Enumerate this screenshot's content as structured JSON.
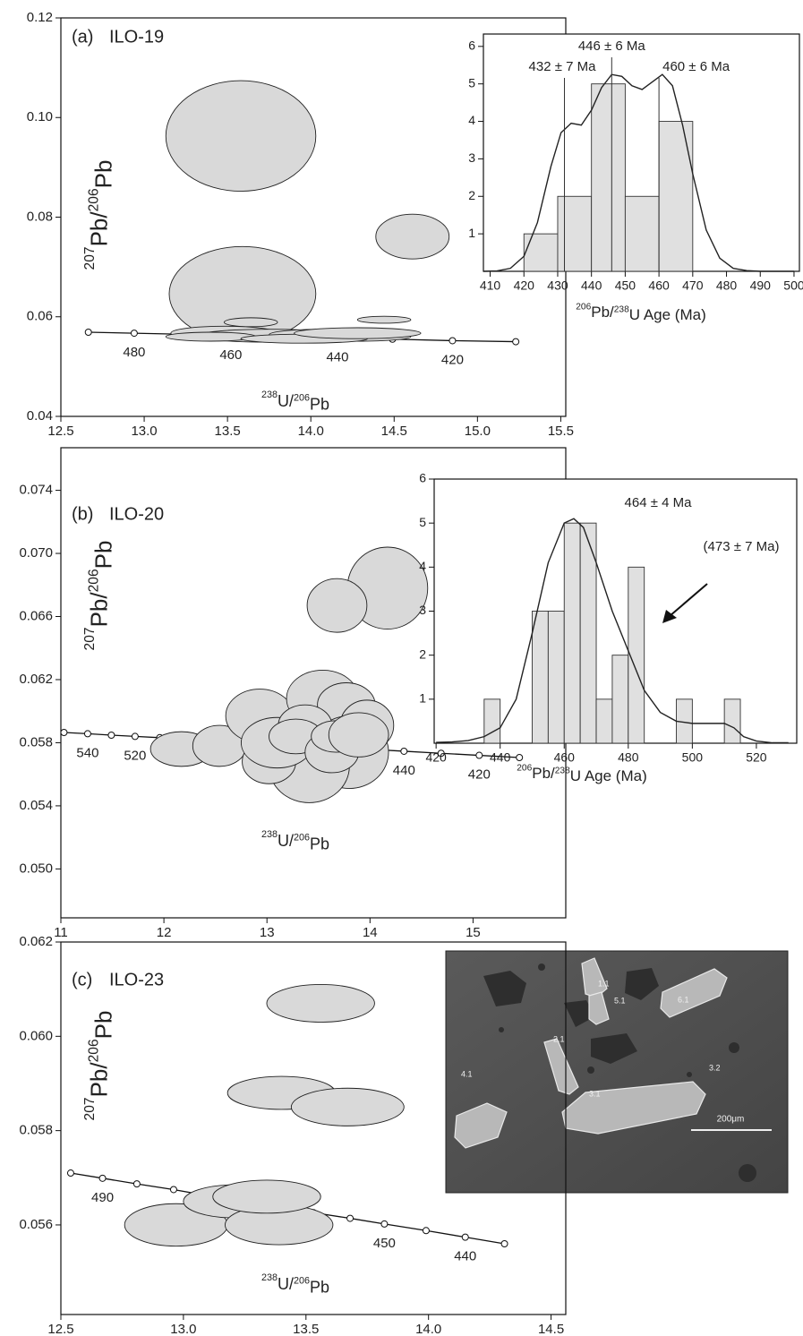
{
  "chart_data": [
    {
      "type": "scatter",
      "panel": "(a)",
      "sample": "ILO-19",
      "xlabel": [
        {
          "text": "238",
          "sup": true
        },
        {
          "text": "U/"
        },
        {
          "text": "206",
          "sup": true
        },
        {
          "text": "Pb"
        }
      ],
      "ylabel": [
        {
          "text": "207",
          "sup": true
        },
        {
          "text": "Pb/"
        },
        {
          "text": "206",
          "sup": true
        },
        {
          "text": "Pb"
        }
      ],
      "xlim": [
        12.5,
        15.53
      ],
      "ylim": [
        0.04,
        0.12
      ],
      "xticks": [
        12.5,
        {
          "value": 13,
          "label": "13.0"
        },
        13.5,
        {
          "value": 14,
          "label": "14.0"
        },
        14.5,
        {
          "value": 15,
          "label": "15.0"
        },
        15.5
      ],
      "yticks": [
        0.04,
        0.06,
        0.08,
        {
          "value": 0.1,
          "label": "0.10"
        },
        0.12
      ],
      "color": "#d9d9d9",
      "ellipses": {
        "x": [
          13.58,
          14.61,
          13.59,
          14.44,
          13.64,
          13.48,
          13.75,
          14.07,
          14.28,
          13.4,
          13.96,
          14.28
        ],
        "y": [
          0.0963,
          0.0761,
          0.0646,
          0.0594,
          0.0589,
          0.0567,
          0.0562,
          0.0564,
          0.056,
          0.056,
          0.0556,
          0.0567
        ],
        "x_err": [
          0.45,
          0.22,
          0.44,
          0.16,
          0.16,
          0.32,
          0.43,
          0.32,
          0.32,
          0.27,
          0.38,
          0.38
        ],
        "y_err": [
          0.0111,
          0.0045,
          0.0095,
          0.0007,
          0.0009,
          0.0014,
          0.0013,
          0.0011,
          0.0009,
          0.0009,
          0.0009,
          0.0011
        ]
      },
      "concordia": {
        "x": [
          12.665,
          12.94,
          13.22,
          13.52,
          13.83,
          14.16,
          14.49,
          14.85,
          15.23
        ],
        "y": [
          0.0569,
          0.0567,
          0.0565,
          0.0562,
          0.056,
          0.0557,
          0.0555,
          0.0552,
          0.055
        ],
        "labels": [
          null,
          480,
          null,
          460,
          null,
          440,
          null,
          420,
          null
        ]
      }
    },
    {
      "type": "histogram",
      "xlabel": [
        {
          "text": "206",
          "sup": true
        },
        {
          "text": "Pb/"
        },
        {
          "text": "238",
          "sup": true
        },
        {
          "text": "U Age (Ma)"
        }
      ],
      "xlim": [
        408,
        501.6
      ],
      "ylim": [
        0,
        6.33
      ],
      "xticks": [
        410,
        420,
        430,
        440,
        450,
        460,
        470,
        480,
        490,
        500
      ],
      "yticks": [
        1,
        2,
        3,
        4,
        5,
        6
      ],
      "color": "#e0e0e0",
      "bins": [
        420,
        430,
        440,
        450,
        460,
        470
      ],
      "values": [
        1,
        2,
        5,
        2,
        4
      ],
      "kde": {
        "x": [
          408,
          412,
          416,
          420,
          424,
          428,
          431,
          434,
          437,
          440,
          443,
          446,
          449,
          452,
          455,
          458,
          461,
          464,
          467,
          470,
          474,
          478,
          482,
          486,
          490,
          500
        ],
        "y": [
          0,
          0.01,
          0.08,
          0.4,
          1.3,
          2.8,
          3.7,
          3.95,
          3.9,
          4.3,
          4.9,
          5.25,
          5.2,
          4.95,
          4.85,
          5.05,
          5.25,
          4.95,
          3.9,
          2.6,
          1.1,
          0.35,
          0.08,
          0.02,
          0,
          0
        ]
      },
      "peaks": [
        {
          "value": 432,
          "label": "432 ± 7 Ma"
        },
        {
          "value": 446,
          "label": "446 ± 6 Ma"
        },
        {
          "value": 460,
          "label": "460 ± 6 Ma"
        }
      ]
    },
    {
      "type": "scatter",
      "panel": "(b)",
      "sample": "ILO-20",
      "xlabel": [
        {
          "text": "238",
          "sup": true
        },
        {
          "text": "U/"
        },
        {
          "text": "206",
          "sup": true
        },
        {
          "text": "Pb"
        }
      ],
      "ylabel": [
        {
          "text": "207",
          "sup": true
        },
        {
          "text": "Pb/"
        },
        {
          "text": "206",
          "sup": true
        },
        {
          "text": "Pb"
        }
      ],
      "xlim": [
        11,
        15.9
      ],
      "ylim": [
        0.0469,
        0.0767
      ],
      "xticks": [
        11,
        12,
        13,
        14,
        15
      ],
      "yticks": [
        {
          "value": 0.05,
          "label": "0.050"
        },
        0.054,
        0.058,
        0.062,
        0.066,
        {
          "value": 0.07,
          "label": "0.070"
        },
        0.074
      ],
      "color": "#d9d9d9",
      "ellipses": {
        "x": [
          14.17,
          13.68,
          12.17,
          12.54,
          12.93,
          13.54,
          13.77,
          13.97,
          13.8,
          13.41,
          13.02,
          13.1,
          13.37,
          13.28,
          13.63,
          13.67,
          13.89
        ],
        "y": [
          0.0678,
          0.0667,
          0.0576,
          0.0578,
          0.0597,
          0.0608,
          0.0604,
          0.0591,
          0.0574,
          0.0565,
          0.0568,
          0.058,
          0.0591,
          0.0584,
          0.0574,
          0.0584,
          0.0585
        ],
        "x_err": [
          0.39,
          0.29,
          0.3,
          0.26,
          0.33,
          0.35,
          0.28,
          0.26,
          0.38,
          0.39,
          0.26,
          0.35,
          0.26,
          0.26,
          0.26,
          0.24,
          0.29
        ],
        "y_err": [
          0.0026,
          0.0017,
          0.0011,
          0.0013,
          0.0017,
          0.0018,
          0.0014,
          0.0016,
          0.0023,
          0.0023,
          0.0014,
          0.0016,
          0.0013,
          0.0011,
          0.0013,
          0.001,
          0.0014
        ]
      },
      "concordia": {
        "x": [
          11.03,
          11.26,
          11.49,
          11.72,
          11.96,
          12.21,
          12.48,
          12.77,
          13.1,
          13.47,
          13.89,
          14.33,
          14.69,
          15.06,
          15.45
        ],
        "y": [
          0.05865,
          0.05857,
          0.05848,
          0.0584,
          0.05832,
          0.05823,
          0.05813,
          0.05802,
          0.0579,
          0.05777,
          0.05762,
          0.05746,
          0.05733,
          0.0572,
          0.05706
        ],
        "labels": [
          null,
          540,
          null,
          520,
          null,
          null,
          null,
          null,
          null,
          null,
          null,
          440,
          null,
          420,
          null
        ]
      }
    },
    {
      "type": "histogram",
      "xlabel": [
        {
          "text": "206",
          "sup": true
        },
        {
          "text": "Pb/"
        },
        {
          "text": "238",
          "sup": true
        },
        {
          "text": "U Age (Ma)"
        }
      ],
      "xlim": [
        419.4,
        532.6
      ],
      "ylim": [
        0,
        6
      ],
      "xticks": [
        420,
        440,
        460,
        480,
        500,
        520
      ],
      "yticks": [
        1,
        2,
        3,
        4,
        5,
        6
      ],
      "color": "#e0e0e0",
      "bins": [
        435,
        440,
        445,
        450,
        455,
        460,
        465,
        470,
        475,
        480,
        485,
        490,
        495,
        500,
        505,
        510,
        515
      ],
      "values": [
        1,
        0,
        0,
        3,
        3,
        5,
        5,
        1,
        2,
        4,
        0,
        0,
        1,
        0,
        0,
        1
      ],
      "kde": {
        "x": [
          420,
          425,
          430,
          435,
          440,
          445,
          450,
          455,
          460,
          463,
          466,
          470,
          475,
          480,
          485,
          490,
          495,
          500,
          505,
          510,
          513,
          516,
          520,
          525,
          530
        ],
        "y": [
          0.02,
          0.03,
          0.06,
          0.15,
          0.35,
          1.0,
          2.5,
          4.1,
          5.0,
          5.1,
          4.9,
          4.1,
          3.0,
          2.1,
          1.2,
          0.7,
          0.5,
          0.45,
          0.45,
          0.45,
          0.35,
          0.15,
          0.05,
          0.01,
          0.01
        ]
      },
      "annotations": [
        "464 ± 4 Ma",
        "(473 ± 7 Ma)"
      ]
    },
    {
      "type": "scatter",
      "panel": "(c)",
      "sample": "ILO-23",
      "xlabel": [
        {
          "text": "238",
          "sup": true
        },
        {
          "text": "U/"
        },
        {
          "text": "206",
          "sup": true
        },
        {
          "text": "Pb"
        }
      ],
      "ylabel": [
        {
          "text": "207",
          "sup": true
        },
        {
          "text": "Pb/"
        },
        {
          "text": "206",
          "sup": true
        },
        {
          "text": "Pb"
        }
      ],
      "xlim": [
        12.5,
        14.56
      ],
      "ylim": [
        0.0541,
        0.062
      ],
      "xticks": [
        12.5,
        {
          "value": 13,
          "label": "13.0"
        },
        13.5,
        {
          "value": 14,
          "label": "14.0"
        },
        14.5
      ],
      "yticks": [
        0.056,
        0.058,
        {
          "value": 0.06,
          "label": "0.060"
        },
        0.062
      ],
      "color": "#d9d9d9",
      "ellipses": {
        "x": [
          13.56,
          13.4,
          13.67,
          12.97,
          13.21,
          13.39,
          13.34
        ],
        "y": [
          0.0607,
          0.0588,
          0.0585,
          0.056,
          0.0565,
          0.056,
          0.0566
        ],
        "x_err": [
          0.22,
          0.22,
          0.23,
          0.21,
          0.21,
          0.22,
          0.22
        ],
        "y_err": [
          0.0004,
          0.00035,
          0.0004,
          0.00045,
          0.00035,
          0.00042,
          0.00035
        ]
      },
      "concordia": {
        "x": [
          12.54,
          12.67,
          12.81,
          12.96,
          13.1,
          13.25,
          13.39,
          13.53,
          13.68,
          13.82,
          13.99,
          14.15,
          14.31
        ],
        "y": [
          0.0571,
          0.05699,
          0.05687,
          0.05675,
          0.05662,
          0.0565,
          0.05638,
          0.05626,
          0.05614,
          0.05602,
          0.05588,
          0.05574,
          0.0556
        ],
        "labels": [
          null,
          490,
          null,
          null,
          null,
          null,
          null,
          null,
          null,
          450,
          null,
          440,
          null
        ]
      }
    },
    {
      "type": "image",
      "labels": [
        "1.1",
        "5.1",
        "6.1",
        "2.1",
        "3.2",
        "4.1",
        "3.1"
      ],
      "scale_label": "200μm"
    }
  ]
}
